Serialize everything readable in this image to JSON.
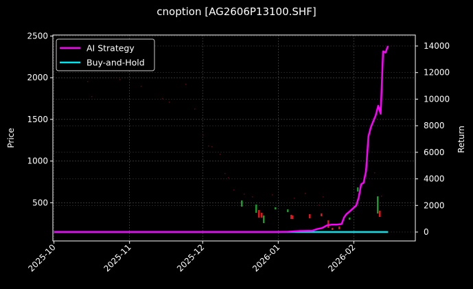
{
  "title": "cnoption [AG2606P13100.SHF]",
  "chart_data": {
    "type": "line",
    "title": "cnoption [AG2606P13100.SHF]",
    "xlabel": "",
    "ylabel_left": "Price",
    "ylabel_right": "Return",
    "x_ticks": [
      "2025-10",
      "2025-11",
      "2025-12",
      "2026-01",
      "2026-02"
    ],
    "y_left_ticks": [
      500,
      1000,
      1500,
      2000,
      2500
    ],
    "y_right_ticks": [
      0,
      2000,
      4000,
      6000,
      8000,
      10000,
      12000,
      14000
    ],
    "y_left_range": [
      40,
      2520
    ],
    "y_right_range": [
      -500,
      14700
    ],
    "grid": true,
    "legend_position": "upper left",
    "legend": [
      {
        "label": "AI Strategy",
        "color": "#ff00ff"
      },
      {
        "label": "Buy-and-Hold",
        "color": "#00e5ee"
      }
    ],
    "series": [
      {
        "name": "AI Strategy",
        "axis": "right",
        "color": "#ff00ff",
        "points": [
          [
            "2025-10-01",
            0
          ],
          [
            "2025-12-31",
            0
          ],
          [
            "2026-01-05",
            20
          ],
          [
            "2026-01-10",
            80
          ],
          [
            "2026-01-15",
            100
          ],
          [
            "2026-01-17",
            220
          ],
          [
            "2026-01-19",
            300
          ],
          [
            "2026-01-21",
            500
          ],
          [
            "2026-01-23",
            560
          ],
          [
            "2026-01-25",
            560
          ],
          [
            "2026-01-27",
            600
          ],
          [
            "2026-01-28",
            1100
          ],
          [
            "2026-01-29",
            1350
          ],
          [
            "2026-01-30",
            1500
          ],
          [
            "2026-02-02",
            2000
          ],
          [
            "2026-02-03",
            2600
          ],
          [
            "2026-02-04",
            3600
          ],
          [
            "2026-02-05",
            3700
          ],
          [
            "2026-02-06",
            4600
          ],
          [
            "2026-02-07",
            7200
          ],
          [
            "2026-02-08",
            7900
          ],
          [
            "2026-02-10",
            8800
          ],
          [
            "2026-02-11",
            9500
          ],
          [
            "2026-02-12",
            8900
          ],
          [
            "2026-02-13",
            13600
          ],
          [
            "2026-02-14",
            13500
          ],
          [
            "2026-02-15",
            14000
          ]
        ]
      },
      {
        "name": "Buy-and-Hold",
        "axis": "right",
        "color": "#00e5ee",
        "points": [
          [
            "2025-10-01",
            0
          ],
          [
            "2026-02-15",
            0
          ]
        ]
      }
    ],
    "candles_note": "OHLC price markers on left axis: faint red dots ~2000 declining through ~1500 (Nov) to ~500 (Dec), visible candles ~300-500 late Dec to mid Feb; green ~880 and ~640 early Feb, green spike to ~560 and red ~380 mid Feb"
  }
}
